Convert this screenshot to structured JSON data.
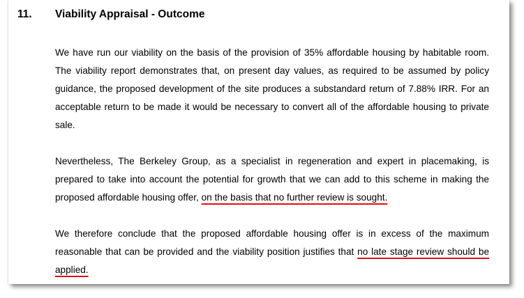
{
  "section": {
    "number": "11.",
    "title": "Viability Appraisal - Outcome"
  },
  "paragraphs": [
    {
      "text": "We have run our viability on the basis of the provision of 35% affordable housing by habitable room. The viability report demonstrates that, on present day values, as required to be assumed by policy guidance, the proposed development of the site produces a substandard return of 7.88% IRR. For an acceptable return to be made it would be necessary to convert all of the affordable housing to private sale."
    },
    {
      "text": "Nevertheless, The Berkeley Group, as a specialist in regeneration and expert in placemaking, is prepared to take into account the potential for growth that we can add to this scheme in making the proposed affordable housing offer, ",
      "highlight": "on the basis that no further review is sought."
    },
    {
      "text": "We therefore conclude that the proposed affordable housing offer is in excess of the maximum reasonable that can be provided and the viability position justifies that ",
      "highlight": "no late stage review should be applied."
    }
  ],
  "annotation_color": "#e01010"
}
